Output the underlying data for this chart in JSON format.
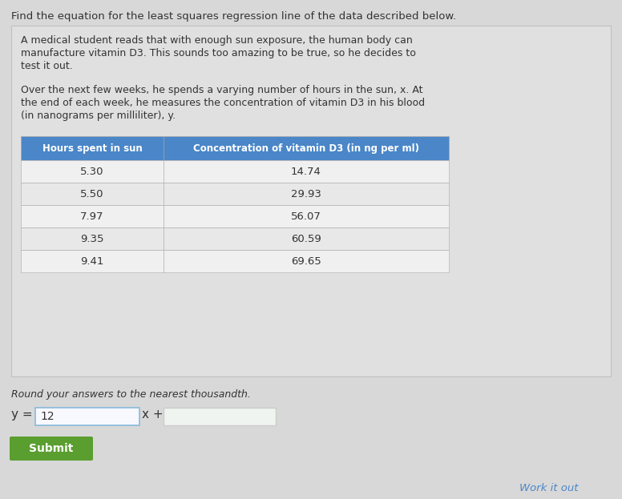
{
  "title": "Find the equation for the least squares regression line of the data described below.",
  "para1_line1": "A medical student reads that with enough sun exposure, the human body can",
  "para1_line2": "manufacture vitamin D3. This sounds too amazing to be true, so he decides to",
  "para1_line3": "test it out.",
  "para2_line1": "Over the next few weeks, he spends a varying number of hours in the sun, x. At",
  "para2_line2": "the end of each week, he measures the concentration of vitamin D3 in his blood",
  "para2_line3": "(in nanograms per milliliter), y.",
  "col1_header": "Hours spent in sun",
  "col2_header": "Concentration of vitamin D3 (in ng per ml)",
  "table_data": [
    [
      "5.30",
      "14.74"
    ],
    [
      "5.50",
      "29.93"
    ],
    [
      "7.97",
      "56.07"
    ],
    [
      "9.35",
      "60.59"
    ],
    [
      "9.41",
      "69.65"
    ]
  ],
  "round_text": "Round your answers to the nearest thousandth.",
  "box1_value": "12",
  "submit_text": "Submit",
  "work_text": "Work it out",
  "bg_color": "#d8d8d8",
  "panel_bg": "#e0e0e0",
  "header_bg": "#4a86c8",
  "header_text_color": "#ffffff",
  "row_bg_odd": "#f0f0f0",
  "row_bg_even": "#e8e8e8",
  "table_border": "#aaaaaa",
  "submit_bg": "#5a9e2f",
  "submit_text_color": "#ffffff",
  "work_color": "#4a86c8",
  "title_color": "#333333",
  "body_text_color": "#333333",
  "box1_border": "#88bbdd",
  "box2_border": "#cccccc"
}
